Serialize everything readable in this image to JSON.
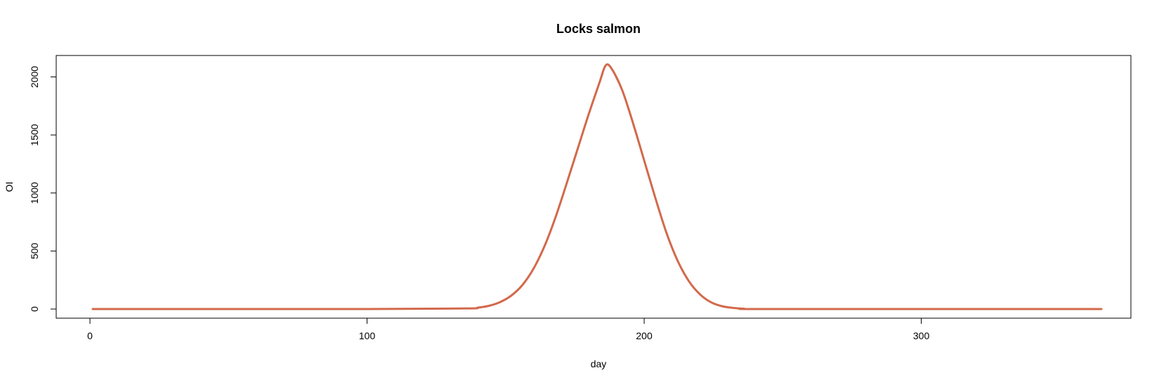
{
  "chart_data": {
    "type": "line",
    "title": "Locks salmon",
    "xlabel": "day",
    "ylabel": "OI",
    "xlim": [
      1,
      365
    ],
    "ylim": [
      0,
      2100
    ],
    "x_ticks": [
      0,
      100,
      200,
      300
    ],
    "y_ticks": [
      0,
      500,
      1000,
      1500,
      2000
    ],
    "grid": false,
    "legend": "none",
    "series": [
      {
        "color": "#d2694b",
        "x": [
          1,
          100,
          136,
          140,
          144,
          148,
          152,
          156,
          160,
          164,
          168,
          172,
          176,
          180,
          184,
          186,
          188,
          192,
          196,
          200,
          204,
          208,
          212,
          216,
          220,
          224,
          228,
          232,
          236,
          240,
          300,
          365
        ],
        "y": [
          0,
          0,
          5,
          12,
          28,
          60,
          115,
          205,
          345,
          540,
          790,
          1080,
          1380,
          1680,
          1960,
          2095,
          2080,
          1890,
          1600,
          1280,
          960,
          660,
          420,
          245,
          130,
          60,
          25,
          10,
          3,
          0,
          0,
          0
        ]
      }
    ]
  }
}
